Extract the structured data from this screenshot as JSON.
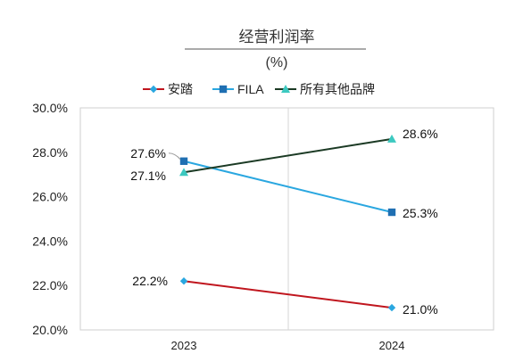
{
  "chart_data": {
    "type": "line",
    "title": "经营利润率",
    "subtitle": "(%)",
    "xlabel": "",
    "ylabel": "",
    "categories": [
      "2023",
      "2024"
    ],
    "ylim": [
      20,
      30
    ],
    "yticks": [
      "20.0%",
      "22.0%",
      "24.0%",
      "26.0%",
      "28.0%",
      "30.0%"
    ],
    "grid": "vertical category separator",
    "legend_position": "top",
    "series": [
      {
        "name": "安踏",
        "values": [
          22.2,
          21.0
        ],
        "labels": [
          "22.2%",
          "21.0%"
        ],
        "color": "#c0161e",
        "marker": "diamond",
        "marker_color": "#2aa7e0"
      },
      {
        "name": "FILA",
        "values": [
          27.6,
          25.3
        ],
        "labels": [
          "27.6%",
          "25.3%"
        ],
        "color": "#2aa7e0",
        "marker": "square",
        "marker_color": "#1f6fb2"
      },
      {
        "name": "所有其他品牌",
        "values": [
          27.1,
          28.6
        ],
        "labels": [
          "27.1%",
          "28.6%"
        ],
        "color": "#1b3a24",
        "marker": "triangle",
        "marker_color": "#3cc9c0"
      }
    ]
  }
}
